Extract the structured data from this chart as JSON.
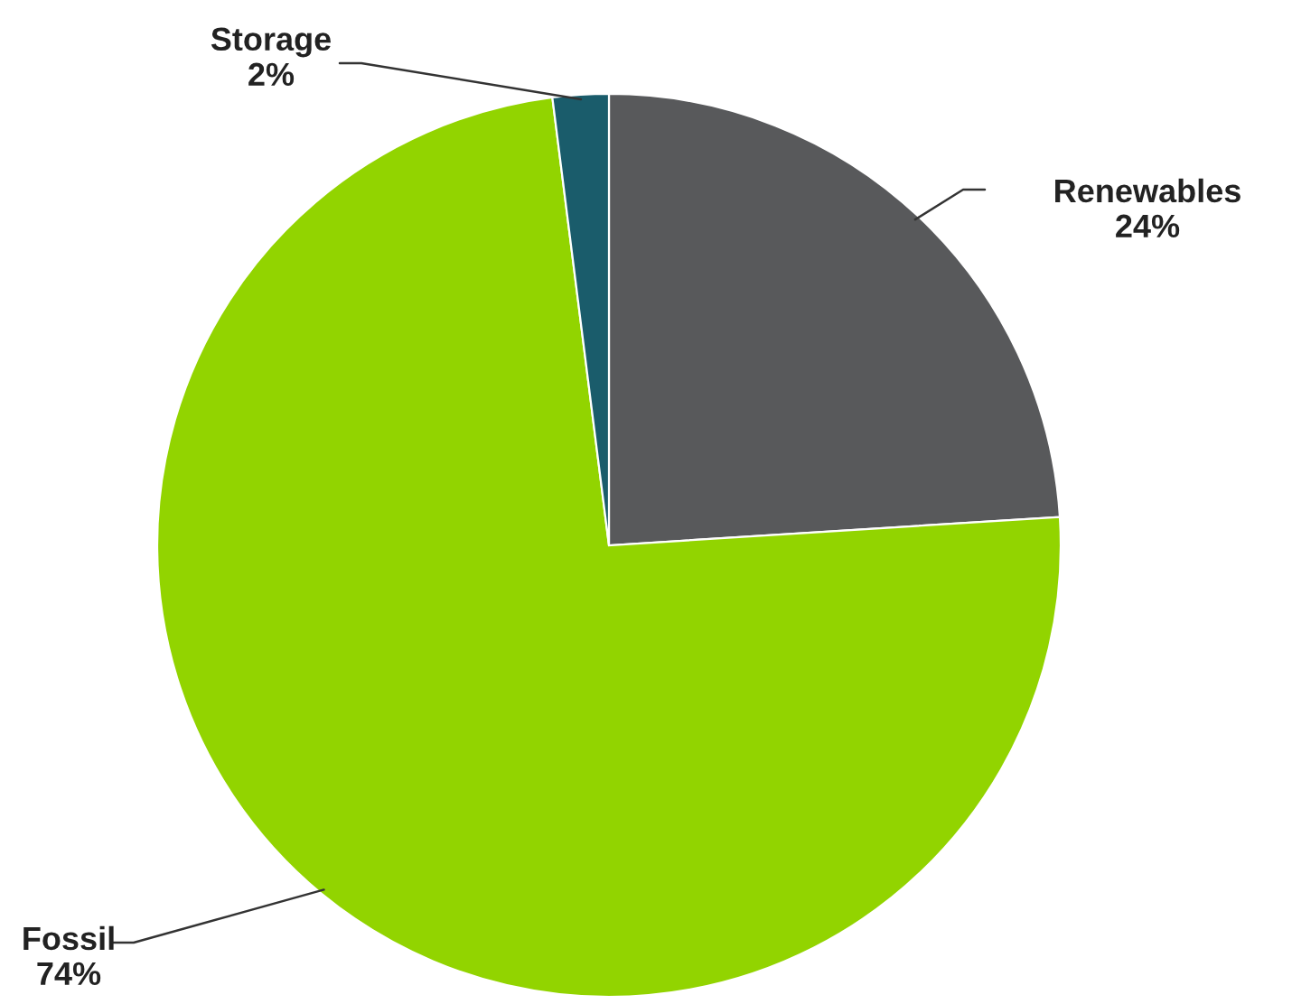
{
  "chart_data": {
    "type": "pie",
    "categories": [
      "Renewables",
      "Fossil",
      "Storage"
    ],
    "values": [
      24,
      74,
      2
    ],
    "colors": [
      "#58595b",
      "#92d400",
      "#1a5c6b"
    ],
    "value_labels": [
      "24%",
      "74%",
      "2%"
    ]
  }
}
